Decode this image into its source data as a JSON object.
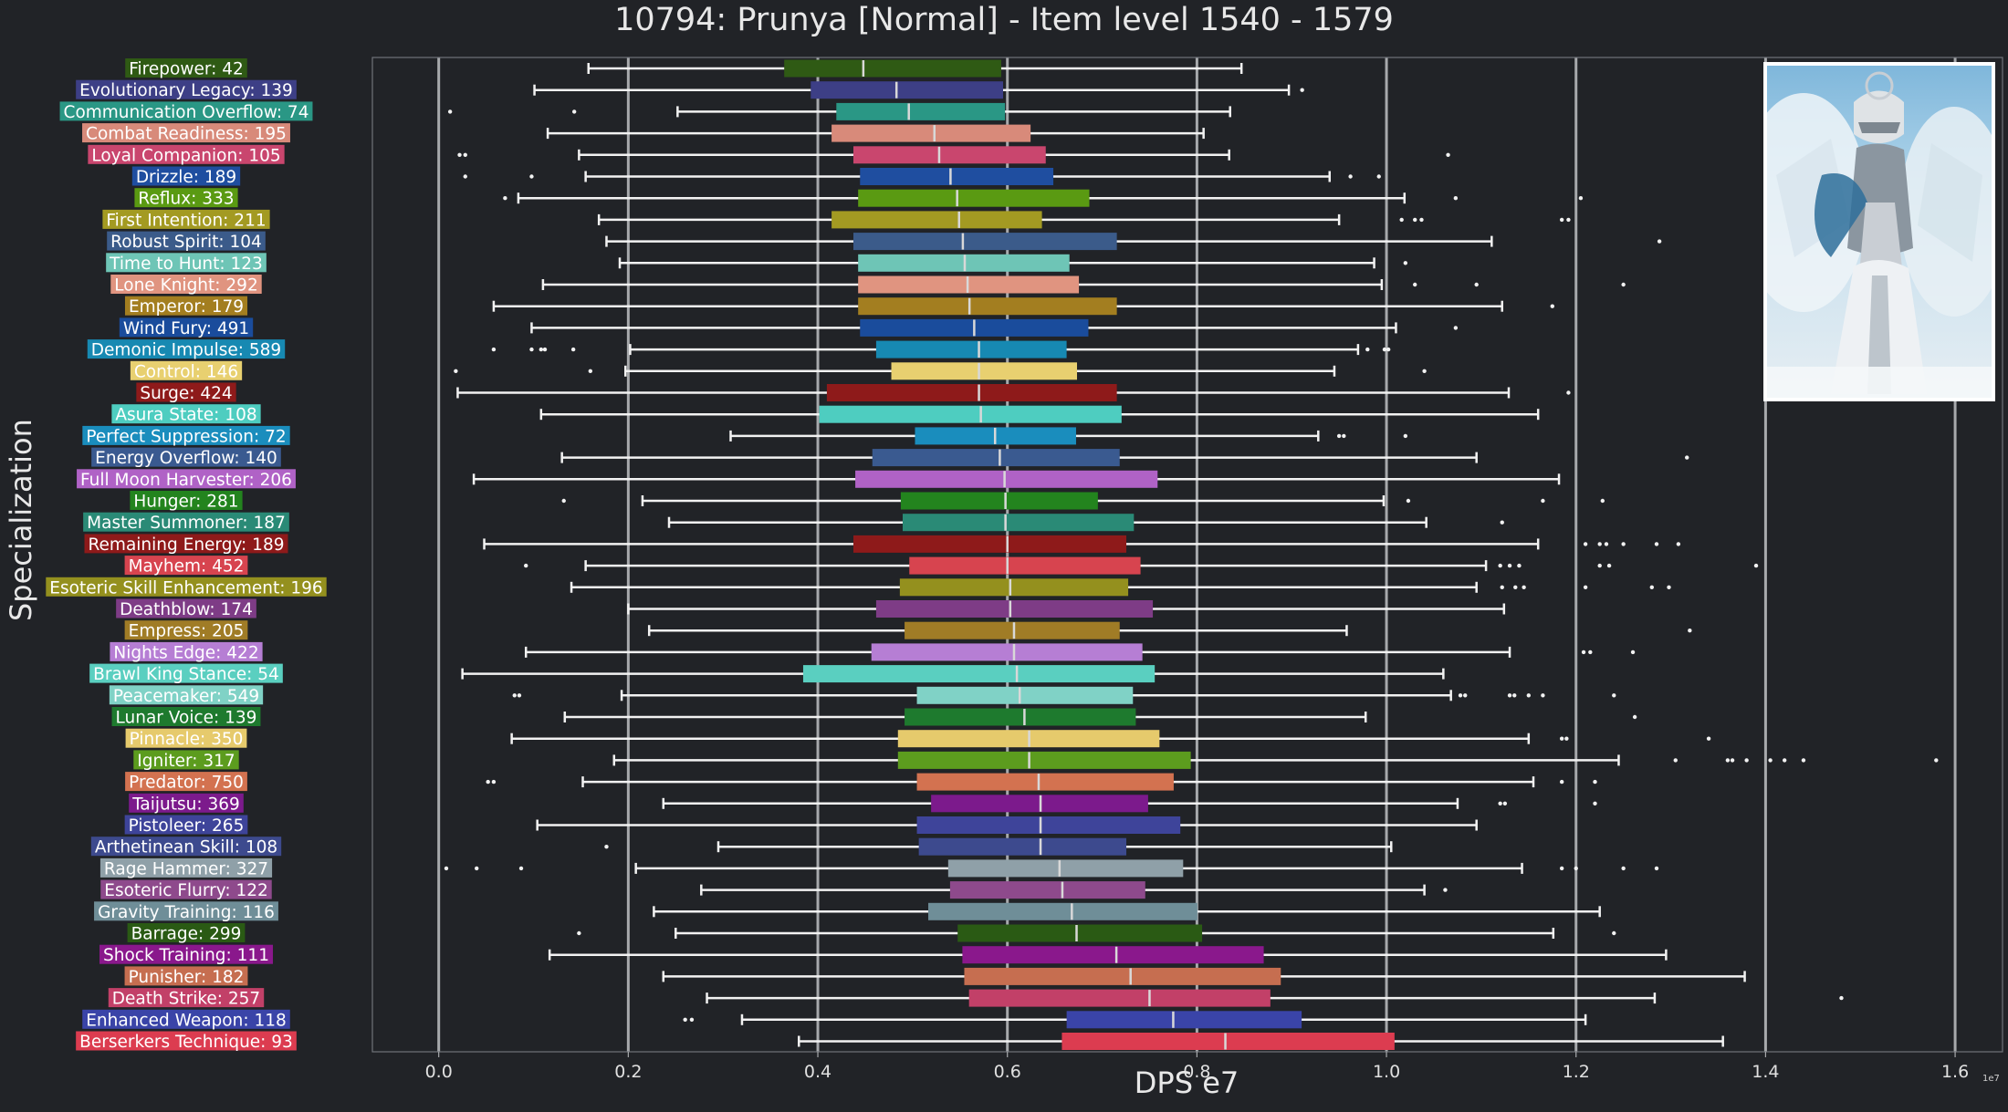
{
  "chart_data": {
    "type": "boxplot",
    "title": "10794: Prunya [Normal] - Item level 1540 - 1579",
    "xlabel": "DPS e7",
    "ylabel": "Specialization",
    "x_scale_note": "1e7",
    "xlim": [
      -0.07,
      1.65
    ],
    "xticks": [
      0.0,
      0.2,
      0.4,
      0.6,
      0.8,
      1.0,
      1.2,
      1.4,
      1.6
    ],
    "xtick_labels": [
      "0.0",
      "0.2",
      "0.4",
      "0.6",
      "0.8",
      "1.0",
      "1.2",
      "1.4",
      "1.6"
    ],
    "grid": "vertical",
    "categories": [
      {
        "label": "Firepower: 42",
        "color": "#2f5a14",
        "q1": 0.365,
        "median": 0.448,
        "q3": 0.593,
        "wlo": 0.158,
        "whi": 0.847,
        "outliers": []
      },
      {
        "label": "Evolutionary Legacy: 139",
        "color": "#3d3f86",
        "q1": 0.393,
        "median": 0.483,
        "q3": 0.595,
        "wlo": 0.101,
        "whi": 0.897,
        "outliers": [
          0.911
        ]
      },
      {
        "label": "Communication Overflow: 74",
        "color": "#2a9785",
        "q1": 0.42,
        "median": 0.496,
        "q3": 0.597,
        "wlo": 0.252,
        "whi": 0.835,
        "outliers": [
          0.012,
          0.143
        ]
      },
      {
        "label": "Combat Readiness: 195",
        "color": "#d88a7a",
        "q1": 0.415,
        "median": 0.523,
        "q3": 0.624,
        "wlo": 0.115,
        "whi": 0.807,
        "outliers": []
      },
      {
        "label": "Loyal Companion: 105",
        "color": "#c9466e",
        "q1": 0.438,
        "median": 0.528,
        "q3": 0.64,
        "wlo": 0.148,
        "whi": 0.834,
        "outliers": [
          0.022,
          0.028,
          1.065
        ]
      },
      {
        "label": "Drizzle: 189",
        "color": "#1f4ea0",
        "q1": 0.445,
        "median": 0.54,
        "q3": 0.648,
        "wlo": 0.155,
        "whi": 0.94,
        "outliers": [
          0.028,
          0.098,
          0.962,
          0.992
        ]
      },
      {
        "label": "Reflux: 333",
        "color": "#5a9a12",
        "q1": 0.443,
        "median": 0.547,
        "q3": 0.686,
        "wlo": 0.084,
        "whi": 1.019,
        "outliers": [
          0.07,
          1.073,
          1.205
        ]
      },
      {
        "label": "First Intention: 211",
        "color": "#a39a22",
        "q1": 0.415,
        "median": 0.549,
        "q3": 0.636,
        "wlo": 0.169,
        "whi": 0.95,
        "outliers": [
          1.016,
          1.03,
          1.037,
          1.185,
          1.192
        ]
      },
      {
        "label": "Robust Spirit: 104",
        "color": "#3b5b8a",
        "q1": 0.438,
        "median": 0.553,
        "q3": 0.715,
        "wlo": 0.177,
        "whi": 1.111,
        "outliers": [
          1.288
        ]
      },
      {
        "label": "Time to Hunt: 123",
        "color": "#6ec5b6",
        "q1": 0.443,
        "median": 0.555,
        "q3": 0.665,
        "wlo": 0.191,
        "whi": 0.987,
        "outliers": [
          1.02
        ]
      },
      {
        "label": "Lone Knight: 292",
        "color": "#e09480",
        "q1": 0.443,
        "median": 0.558,
        "q3": 0.675,
        "wlo": 0.11,
        "whi": 0.995,
        "outliers": [
          1.03,
          1.095,
          1.25
        ]
      },
      {
        "label": "Emperor: 179",
        "color": "#a37e20",
        "q1": 0.443,
        "median": 0.56,
        "q3": 0.715,
        "wlo": 0.058,
        "whi": 1.122,
        "outliers": [
          1.175
        ]
      },
      {
        "label": "Wind Fury: 491",
        "color": "#1a4c9c",
        "q1": 0.445,
        "median": 0.565,
        "q3": 0.685,
        "wlo": 0.098,
        "whi": 1.01,
        "outliers": [
          1.073
        ]
      },
      {
        "label": "Demonic Impulse: 589",
        "color": "#1789b2",
        "q1": 0.462,
        "median": 0.57,
        "q3": 0.662,
        "wlo": 0.202,
        "whi": 0.97,
        "outliers": [
          0.058,
          0.098,
          0.108,
          0.112,
          0.142,
          0.98,
          0.998,
          1.002
        ]
      },
      {
        "label": "Control: 146",
        "color": "#e8d070",
        "q1": 0.478,
        "median": 0.57,
        "q3": 0.673,
        "wlo": 0.197,
        "whi": 0.945,
        "outliers": [
          0.018,
          0.16,
          1.04
        ]
      },
      {
        "label": "Surge: 424",
        "color": "#8e1a1a",
        "q1": 0.41,
        "median": 0.57,
        "q3": 0.715,
        "wlo": 0.02,
        "whi": 1.129,
        "outliers": [
          1.192
        ]
      },
      {
        "label": "Asura State: 108",
        "color": "#4ecdc0",
        "q1": 0.402,
        "median": 0.572,
        "q3": 0.72,
        "wlo": 0.108,
        "whi": 1.16,
        "outliers": []
      },
      {
        "label": "Perfect Suppression: 72",
        "color": "#1a8dbd",
        "q1": 0.503,
        "median": 0.587,
        "q3": 0.672,
        "wlo": 0.308,
        "whi": 0.928,
        "outliers": [
          0.95,
          0.955,
          1.02
        ]
      },
      {
        "label": "Energy Overflow: 140",
        "color": "#3a5a90",
        "q1": 0.458,
        "median": 0.592,
        "q3": 0.718,
        "wlo": 0.13,
        "whi": 1.095,
        "outliers": [
          1.317
        ]
      },
      {
        "label": "Full Moon Harvester: 206",
        "color": "#b062c6",
        "q1": 0.44,
        "median": 0.597,
        "q3": 0.758,
        "wlo": 0.037,
        "whi": 1.182,
        "outliers": []
      },
      {
        "label": "Hunger: 281",
        "color": "#23841e",
        "q1": 0.488,
        "median": 0.598,
        "q3": 0.695,
        "wlo": 0.215,
        "whi": 0.997,
        "outliers": [
          0.132,
          1.023,
          1.165,
          1.228
        ]
      },
      {
        "label": "Master Summoner: 187",
        "color": "#2a8a76",
        "q1": 0.49,
        "median": 0.598,
        "q3": 0.733,
        "wlo": 0.243,
        "whi": 1.042,
        "outliers": [
          1.122
        ]
      },
      {
        "label": "Remaining Energy: 189",
        "color": "#8e1a1a",
        "q1": 0.438,
        "median": 0.6,
        "q3": 0.725,
        "wlo": 0.048,
        "whi": 1.16,
        "outliers": [
          1.21,
          1.225,
          1.232,
          1.25,
          1.285,
          1.308
        ]
      },
      {
        "label": "Mayhem: 452",
        "color": "#d7444f",
        "q1": 0.497,
        "median": 0.6,
        "q3": 0.74,
        "wlo": 0.155,
        "whi": 1.105,
        "outliers": [
          0.092,
          1.12,
          1.13,
          1.14,
          1.225,
          1.235,
          1.39
        ]
      },
      {
        "label": "Esoteric Skill Enhancement: 196",
        "color": "#94901e",
        "q1": 0.487,
        "median": 0.603,
        "q3": 0.727,
        "wlo": 0.14,
        "whi": 1.095,
        "outliers": [
          1.122,
          1.136,
          1.145,
          1.21,
          1.28,
          1.298
        ]
      },
      {
        "label": "Deathblow: 174",
        "color": "#7e3c86",
        "q1": 0.462,
        "median": 0.603,
        "q3": 0.753,
        "wlo": 0.2,
        "whi": 1.124,
        "outliers": []
      },
      {
        "label": "Empress: 205",
        "color": "#a07c26",
        "q1": 0.492,
        "median": 0.607,
        "q3": 0.718,
        "wlo": 0.222,
        "whi": 0.958,
        "outliers": [
          1.32
        ]
      },
      {
        "label": "Nights Edge: 422",
        "color": "#b67ed4",
        "q1": 0.457,
        "median": 0.607,
        "q3": 0.742,
        "wlo": 0.092,
        "whi": 1.13,
        "outliers": [
          1.208,
          1.215,
          1.26
        ]
      },
      {
        "label": "Brawl King Stance: 54",
        "color": "#5acfc0",
        "q1": 0.385,
        "median": 0.61,
        "q3": 0.755,
        "wlo": 0.025,
        "whi": 1.06,
        "outliers": []
      },
      {
        "label": "Peacemaker: 549",
        "color": "#80d2c6",
        "q1": 0.505,
        "median": 0.613,
        "q3": 0.732,
        "wlo": 0.193,
        "whi": 1.068,
        "outliers": [
          0.08,
          0.085,
          1.078,
          1.083,
          1.13,
          1.135,
          1.15,
          1.165,
          1.24
        ]
      },
      {
        "label": "Lunar Voice: 139",
        "color": "#1e7a2e",
        "q1": 0.492,
        "median": 0.618,
        "q3": 0.735,
        "wlo": 0.133,
        "whi": 0.978,
        "outliers": [
          1.262
        ]
      },
      {
        "label": "Pinnacle: 350",
        "color": "#e6ca6c",
        "q1": 0.485,
        "median": 0.623,
        "q3": 0.76,
        "wlo": 0.077,
        "whi": 1.15,
        "outliers": [
          1.185,
          1.19,
          1.34
        ]
      },
      {
        "label": "Igniter: 317",
        "color": "#5c9c1e",
        "q1": 0.485,
        "median": 0.623,
        "q3": 0.793,
        "wlo": 0.185,
        "whi": 1.245,
        "outliers": [
          1.305,
          1.36,
          1.365,
          1.38,
          1.405,
          1.42,
          1.44,
          1.58
        ]
      },
      {
        "label": "Predator: 750",
        "color": "#d37250",
        "q1": 0.505,
        "median": 0.633,
        "q3": 0.775,
        "wlo": 0.152,
        "whi": 1.155,
        "outliers": [
          0.052,
          0.058,
          1.185,
          1.22
        ]
      },
      {
        "label": "Taijutsu: 369",
        "color": "#7c1a8c",
        "q1": 0.52,
        "median": 0.635,
        "q3": 0.748,
        "wlo": 0.237,
        "whi": 1.075,
        "outliers": [
          1.12,
          1.125,
          1.22
        ]
      },
      {
        "label": "Pistoleer: 265",
        "color": "#3e449a",
        "q1": 0.505,
        "median": 0.635,
        "q3": 0.782,
        "wlo": 0.104,
        "whi": 1.095,
        "outliers": []
      },
      {
        "label": "Arthetinean Skill: 108",
        "color": "#3d4a8e",
        "q1": 0.507,
        "median": 0.635,
        "q3": 0.725,
        "wlo": 0.295,
        "whi": 1.005,
        "outliers": [
          0.177
        ]
      },
      {
        "label": "Rage Hammer: 327",
        "color": "#8fa0a8",
        "q1": 0.538,
        "median": 0.655,
        "q3": 0.785,
        "wlo": 0.208,
        "whi": 1.143,
        "outliers": [
          0.008,
          0.04,
          0.087,
          1.185,
          1.2,
          1.25,
          1.285
        ]
      },
      {
        "label": "Esoteric Flurry: 122",
        "color": "#8e4a8c",
        "q1": 0.54,
        "median": 0.658,
        "q3": 0.745,
        "wlo": 0.277,
        "whi": 1.04,
        "outliers": [
          1.062
        ]
      },
      {
        "label": "Gravity Training: 116",
        "color": "#6f8e98",
        "q1": 0.517,
        "median": 0.668,
        "q3": 0.8,
        "wlo": 0.227,
        "whi": 1.225,
        "outliers": []
      },
      {
        "label": "Barrage: 299",
        "color": "#2a5a14",
        "q1": 0.548,
        "median": 0.673,
        "q3": 0.805,
        "wlo": 0.25,
        "whi": 1.176,
        "outliers": [
          0.148,
          1.24
        ]
      },
      {
        "label": "Shock Training: 111",
        "color": "#8a188c",
        "q1": 0.553,
        "median": 0.715,
        "q3": 0.87,
        "wlo": 0.117,
        "whi": 1.295,
        "outliers": []
      },
      {
        "label": "Punisher: 182",
        "color": "#c66e50",
        "q1": 0.555,
        "median": 0.73,
        "q3": 0.888,
        "wlo": 0.237,
        "whi": 1.378,
        "outliers": []
      },
      {
        "label": "Death Strike: 257",
        "color": "#c24068",
        "q1": 0.56,
        "median": 0.75,
        "q3": 0.877,
        "wlo": 0.283,
        "whi": 1.283,
        "outliers": [
          1.48
        ]
      },
      {
        "label": "Enhanced Weapon: 118",
        "color": "#3a44a8",
        "q1": 0.663,
        "median": 0.775,
        "q3": 0.91,
        "wlo": 0.32,
        "whi": 1.21,
        "outliers": [
          0.26,
          0.267
        ]
      },
      {
        "label": "Berserkers Technique: 93",
        "color": "#dc3c50",
        "q1": 0.658,
        "median": 0.83,
        "q3": 1.008,
        "wlo": 0.38,
        "whi": 1.355,
        "outliers": []
      }
    ]
  }
}
